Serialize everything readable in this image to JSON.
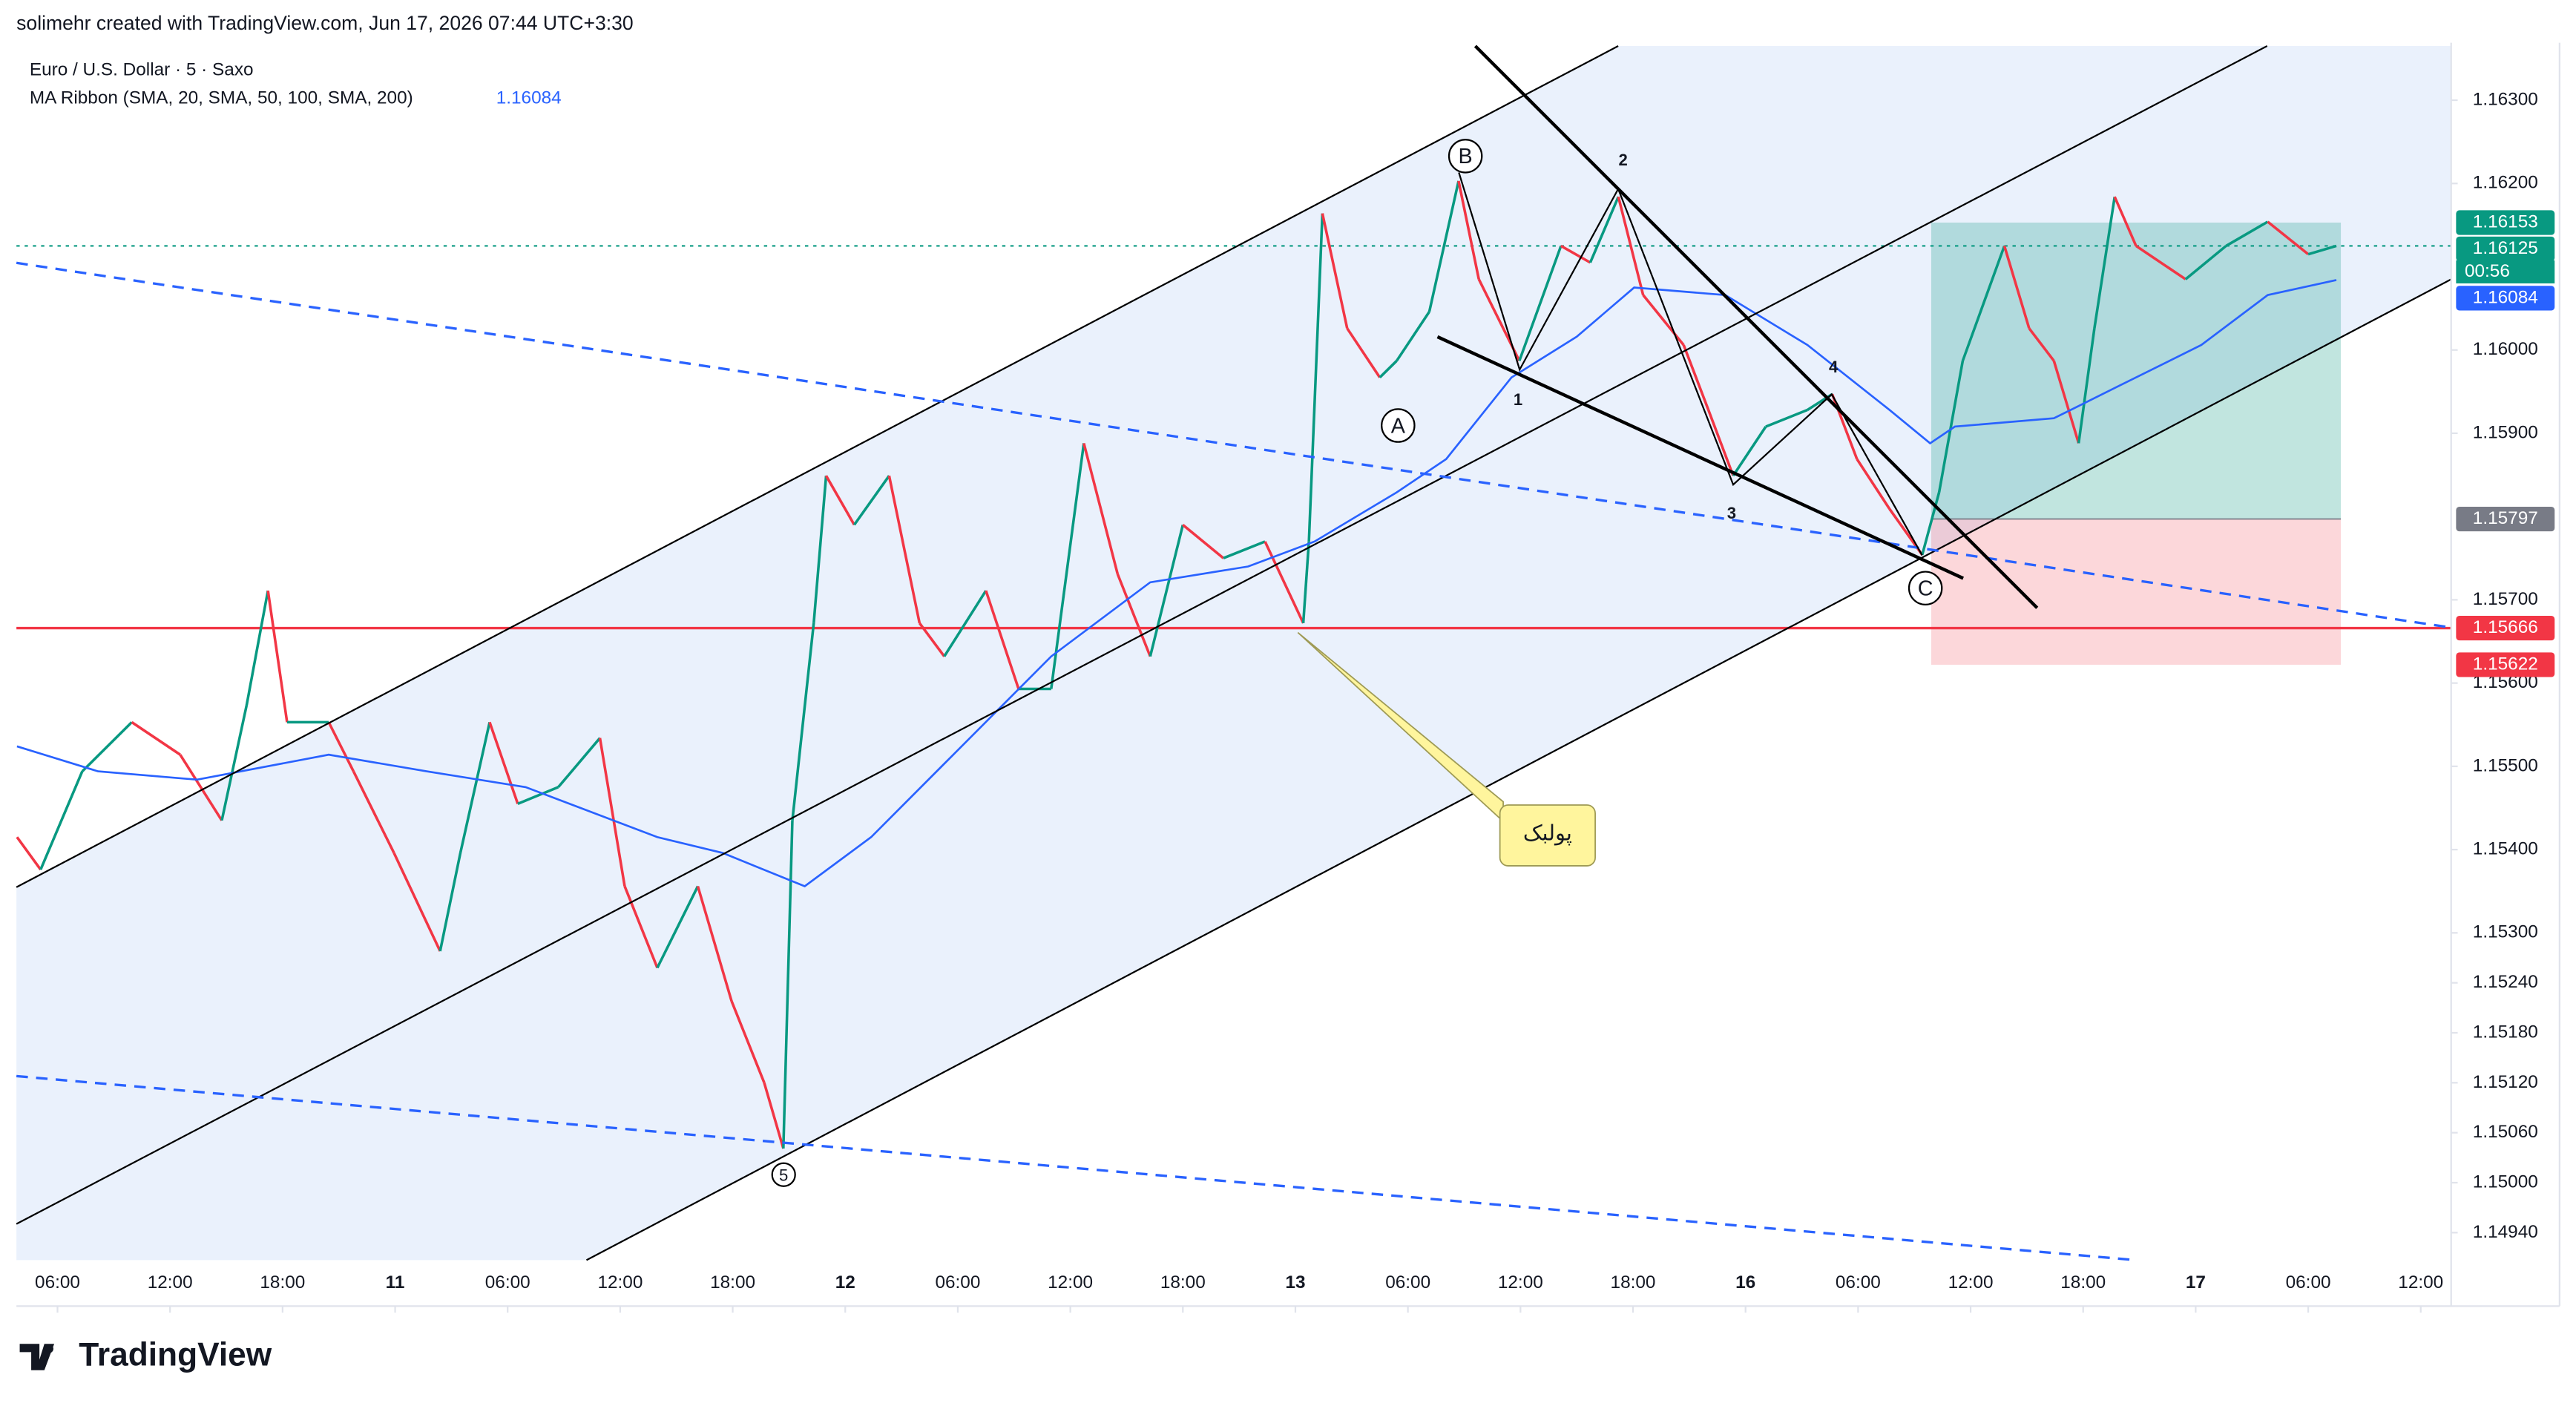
{
  "chart_data": {
    "type": "candlestick",
    "header": "solimehr created with TradingView.com, Jun 17, 2026 07:44 UTC+3:30",
    "title": "Euro / U.S. Dollar · 5 · Saxo",
    "indicator_value": "1.16084",
    "logo": "TradingView",
    "ylim": [
      1.14907,
      1.16371
    ],
    "xlim": [
      -0.365,
      21.27
    ],
    "yticks": [
      {
        "value": 1.163,
        "label": "1.16300"
      },
      {
        "value": 1.162,
        "label": "1.16200"
      },
      {
        "value": 1.16,
        "label": "1.16000"
      },
      {
        "value": 1.159,
        "label": "1.15900"
      },
      {
        "value": 1.157,
        "label": "1.15700"
      },
      {
        "value": 1.156,
        "label": "1.15600"
      },
      {
        "value": 1.155,
        "label": "1.15500"
      },
      {
        "value": 1.154,
        "label": "1.15400"
      },
      {
        "value": 1.153,
        "label": "1.15300"
      },
      {
        "value": 1.1524,
        "label": "1.15240"
      },
      {
        "value": 1.1518,
        "label": "1.15180"
      },
      {
        "value": 1.1512,
        "label": "1.15120"
      },
      {
        "value": 1.1506,
        "label": "1.15060"
      },
      {
        "value": 1.15,
        "label": "1.15000"
      },
      {
        "value": 1.1494,
        "label": "1.14940"
      }
    ],
    "xticks": [
      {
        "value": 0,
        "label": "06:00"
      },
      {
        "value": 1,
        "label": "12:00"
      },
      {
        "value": 2,
        "label": "18:00"
      },
      {
        "value": 3,
        "label": "11"
      },
      {
        "value": 4,
        "label": "06:00"
      },
      {
        "value": 5,
        "label": "12:00"
      },
      {
        "value": 6,
        "label": "18:00"
      },
      {
        "value": 7,
        "label": "12"
      },
      {
        "value": 8,
        "label": "06:00"
      },
      {
        "value": 9,
        "label": "12:00"
      },
      {
        "value": 10,
        "label": "18:00"
      },
      {
        "value": 11,
        "label": "13"
      },
      {
        "value": 12,
        "label": "06:00"
      },
      {
        "value": 13,
        "label": "12:00"
      },
      {
        "value": 14,
        "label": "18:00"
      },
      {
        "value": 15,
        "label": "16"
      },
      {
        "value": 16,
        "label": "06:00"
      },
      {
        "value": 17,
        "label": "12:00"
      },
      {
        "value": 18,
        "label": "18:00"
      },
      {
        "value": 19,
        "label": "17"
      },
      {
        "value": 20,
        "label": "06:00"
      },
      {
        "value": 21,
        "label": "12:00"
      }
    ],
    "series": [
      {
        "up_color": "#089981",
        "down_color": "#f23645",
        "x": [
          -0.36,
          -0.15,
          0.22,
          0.66,
          1.09,
          1.46,
          1.68,
          1.87,
          2.04,
          2.41,
          2.63,
          2.99,
          3.4,
          3.58,
          3.84,
          4.09,
          4.45,
          4.82,
          5.04,
          5.33,
          5.69,
          5.99,
          6.28,
          6.45,
          6.53,
          6.72,
          6.83,
          7.08,
          7.39,
          7.66,
          7.88,
          8.25,
          8.54,
          8.83,
          9.12,
          9.42,
          9.71,
          10,
          10.36,
          10.73,
          11.07,
          11.12,
          11.24,
          11.46,
          11.75,
          11.9,
          12.19,
          12.45,
          12.63,
          12.99,
          13.36,
          13.62,
          13.87,
          14.09,
          14.45,
          14.67,
          14.89,
          15.18,
          15.55,
          15.77,
          15.99,
          16.28,
          16.57,
          16.72,
          16.93,
          17.3,
          17.52,
          17.74,
          17.96,
          18.1,
          18.28,
          18.47,
          18.91,
          19.27,
          19.64,
          20,
          20.25
        ],
        "values": [
          1.15415,
          1.15376,
          1.15494,
          1.15553,
          1.15514,
          1.15435,
          1.15573,
          1.15711,
          1.15553,
          1.15553,
          1.15494,
          1.15396,
          1.15278,
          1.15396,
          1.15553,
          1.15455,
          1.15475,
          1.15534,
          1.15356,
          1.15258,
          1.15356,
          1.15218,
          1.1512,
          1.15041,
          1.15435,
          1.15672,
          1.15849,
          1.1579,
          1.15849,
          1.15672,
          1.15632,
          1.15711,
          1.15593,
          1.15593,
          1.15888,
          1.15731,
          1.15632,
          1.1579,
          1.1575,
          1.1577,
          1.15672,
          1.1577,
          1.16164,
          1.16026,
          1.15967,
          1.15987,
          1.16046,
          1.16203,
          1.16085,
          1.15987,
          1.16125,
          1.16105,
          1.16184,
          1.16066,
          1.16006,
          1.15928,
          1.15849,
          1.15908,
          1.15928,
          1.15947,
          1.15869,
          1.15809,
          1.15754,
          1.15829,
          1.15987,
          1.16125,
          1.16026,
          1.15987,
          1.15888,
          1.16026,
          1.16184,
          1.16125,
          1.16085,
          1.16125,
          1.16154,
          1.16115,
          1.16125
        ]
      },
      {
        "name": "MA Ribbon (SMA, 20, SMA, 50, 100, SMA, 200)",
        "color": "#2962ff",
        "x": [
          -0.36,
          0.36,
          1.24,
          2.41,
          3.28,
          4.16,
          5.33,
          5.91,
          6.64,
          7.23,
          7.96,
          8.83,
          9.71,
          10.58,
          11.17,
          11.9,
          12.34,
          12.92,
          13.5,
          14.01,
          14.82,
          15.55,
          16.28,
          16.64,
          16.86,
          17.74,
          18.32,
          19.05,
          19.64,
          20.25
        ],
        "values": [
          1.15524,
          1.15494,
          1.15484,
          1.15514,
          1.15494,
          1.15475,
          1.15415,
          1.15396,
          1.15356,
          1.15415,
          1.15514,
          1.15632,
          1.15721,
          1.1574,
          1.1577,
          1.15829,
          1.15869,
          1.15967,
          1.16016,
          1.16075,
          1.16066,
          1.16006,
          1.15928,
          1.15888,
          1.15908,
          1.15918,
          1.15957,
          1.16006,
          1.16066,
          1.16084
        ]
      }
    ],
    "price_labels": [
      {
        "value": 1.16153,
        "label": "1.16153",
        "color": "#089981"
      },
      {
        "value": 1.16125,
        "label": "1.16125",
        "color": "#089981"
      },
      {
        "value": 1.16084,
        "label": "1.16084",
        "color": "#2962ff"
      },
      {
        "value": 1.15797,
        "label": "1.15797",
        "color": "#787b86"
      },
      {
        "value": 1.15666,
        "label": "1.15666",
        "color": "#f23645"
      },
      {
        "value": 1.15622,
        "label": "1.15622",
        "color": "#f23645"
      }
    ],
    "countdown": "00:56",
    "horizontal_line": 1.15666,
    "last_price": 1.16125,
    "position": {
      "entry": 1.15797,
      "target": 1.16153,
      "stop": 1.15622,
      "x": [
        16.65,
        20.29
      ]
    },
    "annotations": {
      "wave_a": "A",
      "wave_b": "B",
      "wave_c": "C",
      "wave_5": "5",
      "point_1": "1",
      "point_2": "2",
      "point_3": "3",
      "point_4": "4",
      "callout": "پولبک"
    }
  }
}
